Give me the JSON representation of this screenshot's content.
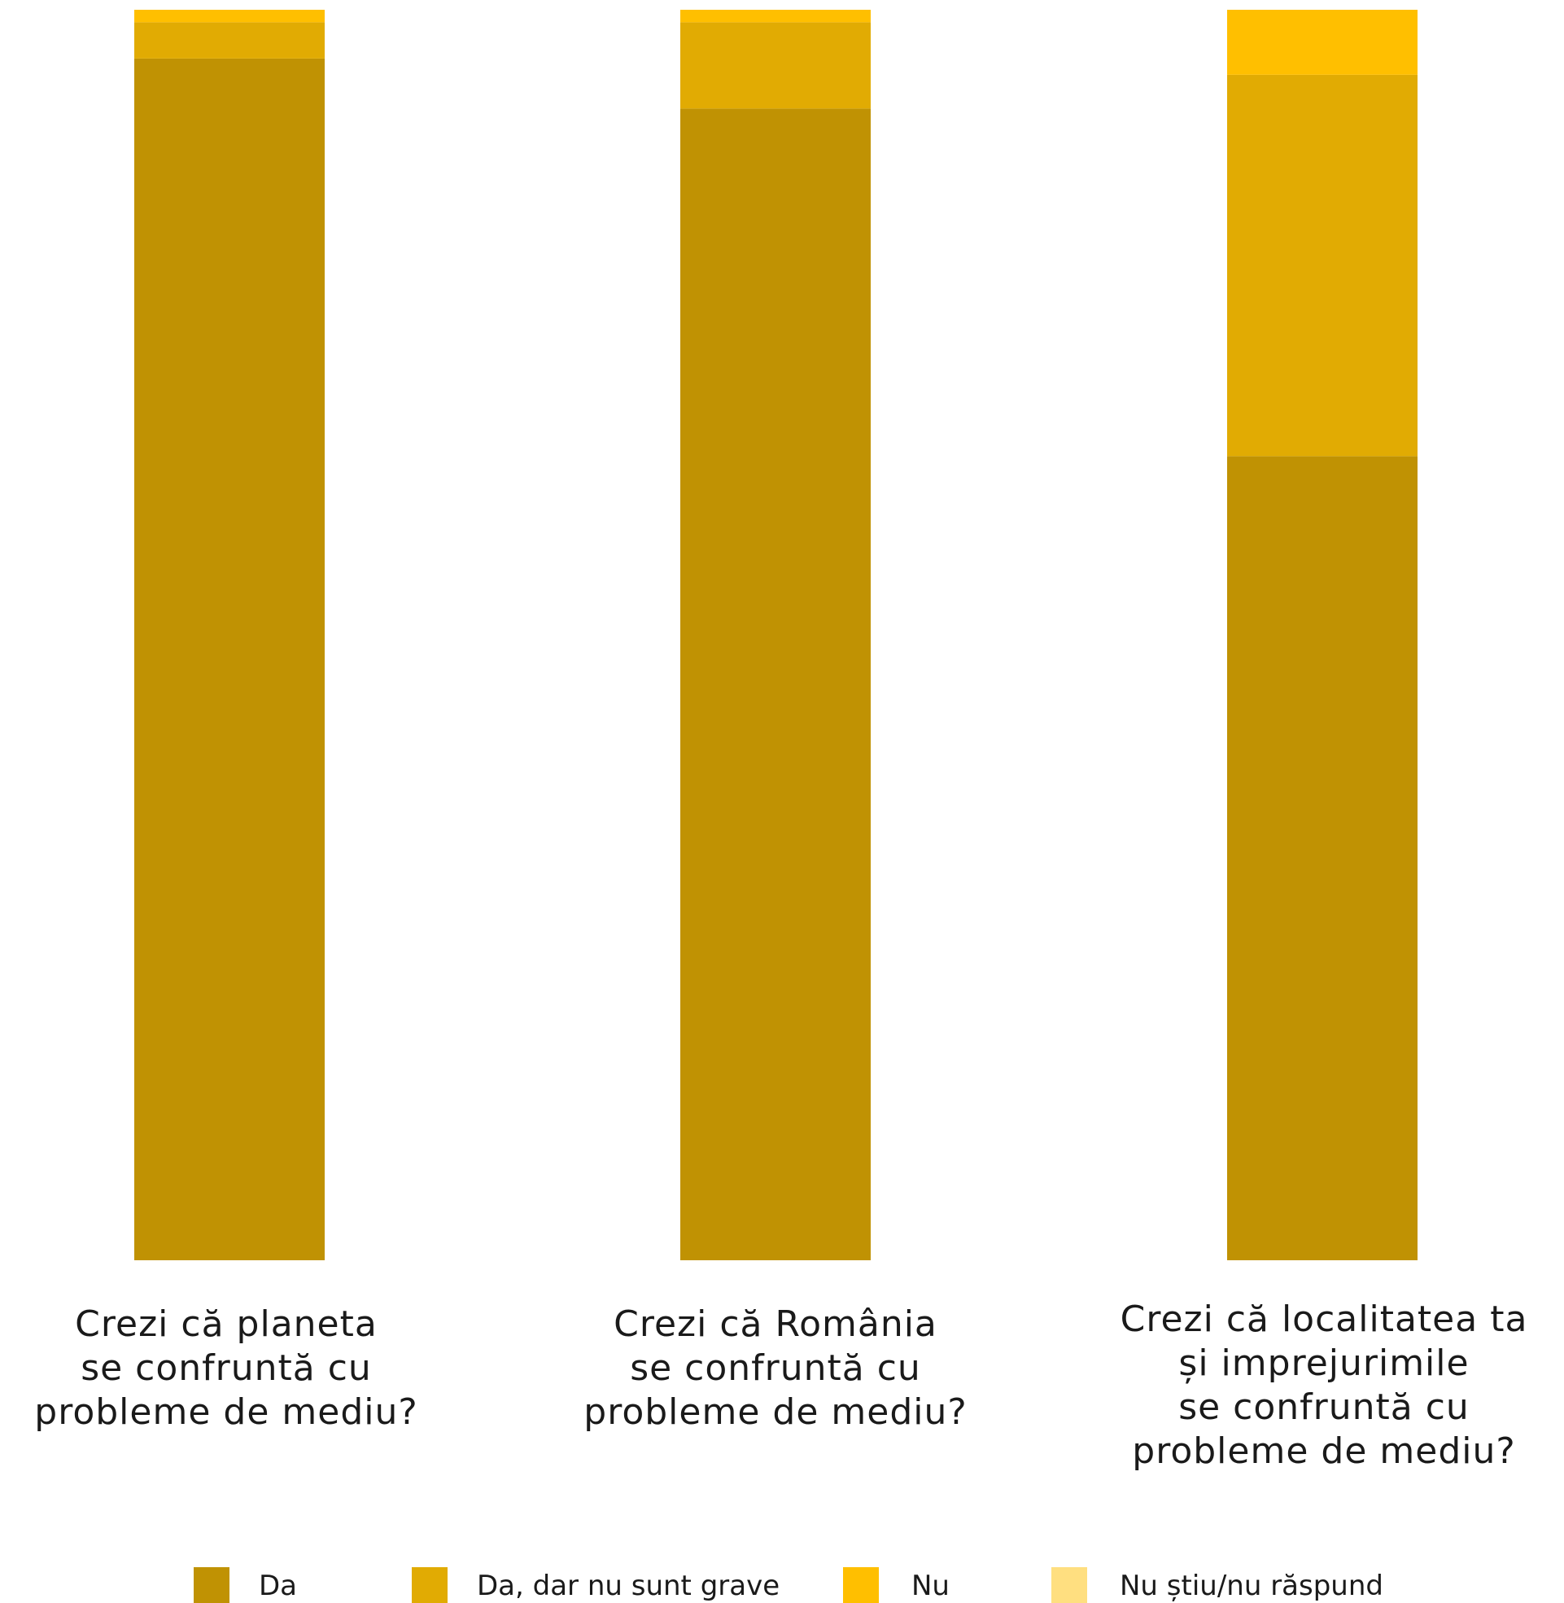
{
  "chart_data": {
    "type": "bar",
    "stacked": true,
    "orientation": "vertical",
    "categories": [
      "Crezi că planeta\nse confruntă cu\nprobleme de mediu?",
      "Crezi că România\nse confruntă cu\nprobleme de mediu?",
      "Crezi că localitatea ta\nși imprejurimile\nse confruntă cu\nprobleme de mediu?"
    ],
    "series": [
      {
        "name": "Da",
        "color": "#C09203",
        "values": [
          96.1,
          92.1,
          64.3
        ]
      },
      {
        "name": "Da, dar nu sunt grave",
        "color": "#E1AB03",
        "values": [
          2.9,
          6.9,
          30.5
        ]
      },
      {
        "name": "Nu",
        "color": "#FFBF00",
        "values": [
          1.0,
          1.0,
          5.2
        ]
      },
      {
        "name": "Nu știu/nu răspund",
        "color": "#FFDF80",
        "values": [
          0,
          0,
          0
        ]
      }
    ],
    "ylim": [
      0,
      100
    ],
    "grid": false,
    "axes_visible": false,
    "legend_position": "bottom"
  }
}
